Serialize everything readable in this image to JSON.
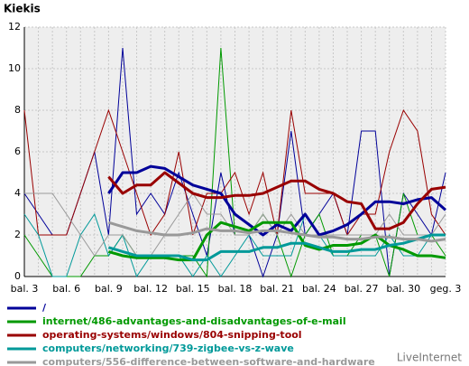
{
  "chart_data": {
    "type": "line",
    "title": "Kiekis",
    "categories": [
      "bal. 3",
      null,
      null,
      "bal. 6",
      null,
      null,
      "bal. 9",
      null,
      null,
      "bal. 12",
      null,
      null,
      "bal. 15",
      null,
      null,
      "bal. 18",
      null,
      null,
      "bal. 21",
      null,
      null,
      "bal. 24",
      null,
      null,
      "bal. 27",
      null,
      null,
      "bal. 30",
      null,
      null,
      "geg. 3"
    ],
    "ylim": [
      0,
      12
    ],
    "yticks": [
      0,
      2,
      4,
      6,
      8,
      10,
      12
    ],
    "grid": true,
    "series": [
      {
        "name": "/",
        "color": "#000099",
        "values": [
          4,
          3,
          2,
          2,
          4,
          6,
          2,
          11,
          3,
          4,
          3,
          5,
          3,
          1,
          5,
          2,
          2,
          0,
          2,
          7,
          2,
          3,
          4,
          2,
          7,
          7,
          0,
          4,
          3,
          2,
          5
        ],
        "trend": [
          null,
          null,
          null,
          null,
          null,
          null,
          4,
          5,
          5,
          5.3,
          5.2,
          4.8,
          4.4,
          4.2,
          4,
          3,
          2.5,
          2,
          2.5,
          2.2,
          3,
          2,
          2.2,
          2.5,
          3,
          3.6,
          3.6,
          3.5,
          3.7,
          3.8,
          3.2
        ]
      },
      {
        "name": "internet/486-advantages-and-disadvantages-of-e-mail",
        "color": "#009900",
        "values": [
          2,
          1,
          0,
          0,
          0,
          1,
          1,
          2,
          1,
          1,
          1,
          1,
          1,
          0,
          11,
          2,
          2,
          3,
          2,
          0,
          2,
          3,
          1,
          1,
          2,
          2,
          0,
          4,
          2,
          2,
          1
        ],
        "trend": [
          null,
          null,
          null,
          null,
          null,
          null,
          1.2,
          1,
          0.9,
          0.9,
          0.9,
          0.8,
          0.8,
          2,
          2.6,
          2.4,
          2.2,
          2.6,
          2.6,
          2.6,
          1.5,
          1.3,
          1.5,
          1.5,
          1.6,
          2,
          1.5,
          1.3,
          1,
          1,
          0.9
        ]
      },
      {
        "name": "operating-systems/windows/804-snipping-tool",
        "color": "#990000",
        "values": [
          8,
          2,
          2,
          2,
          4,
          6,
          8,
          6,
          4,
          2,
          3,
          6,
          2,
          4,
          4,
          5,
          3,
          5,
          2,
          8,
          4,
          4,
          4,
          2,
          3,
          3,
          6,
          8,
          7,
          3,
          2
        ],
        "trend": [
          null,
          null,
          null,
          null,
          null,
          null,
          4.8,
          4,
          4.4,
          4.4,
          5,
          4.5,
          4,
          3.8,
          3.8,
          3.9,
          3.9,
          4,
          4.3,
          4.6,
          4.6,
          4.2,
          4,
          3.6,
          3.5,
          2.3,
          2.3,
          2.6,
          3.5,
          4.2,
          4.3
        ]
      },
      {
        "name": "computers/networking/739-zigbee-vs-z-wave",
        "color": "#009999",
        "values": [
          3,
          2,
          0,
          0,
          2,
          3,
          1,
          2,
          0,
          1,
          1,
          1,
          0,
          1,
          0,
          1,
          2,
          1,
          1,
          1,
          3,
          2,
          1,
          1,
          1,
          1,
          2,
          1,
          1,
          2,
          2
        ],
        "trend": [
          null,
          null,
          null,
          null,
          null,
          null,
          1.4,
          1.2,
          1,
          1,
          1,
          1,
          0.8,
          0.8,
          1.2,
          1.2,
          1.2,
          1.4,
          1.4,
          1.6,
          1.6,
          1.4,
          1.2,
          1.2,
          1.3,
          1.3,
          1.5,
          1.6,
          1.8,
          2,
          2
        ]
      },
      {
        "name": "computers/556-difference-between-software-and-hardware",
        "color": "#999999",
        "values": [
          4,
          4,
          4,
          3,
          2,
          1,
          2,
          2,
          1,
          1,
          2,
          3,
          4,
          3,
          3,
          2,
          2,
          3,
          2,
          3,
          2,
          2,
          2,
          2,
          2,
          2,
          3,
          2,
          2,
          2,
          3
        ],
        "trend": [
          null,
          null,
          null,
          null,
          null,
          null,
          2.6,
          2.4,
          2.2,
          2.1,
          2,
          2,
          2.1,
          2.3,
          2.2,
          2.2,
          2.1,
          2.2,
          2.2,
          2.1,
          2,
          1.9,
          1.9,
          1.8,
          1.8,
          1.9,
          1.9,
          1.8,
          1.8,
          1.7,
          1.8
        ]
      }
    ],
    "footer": "LiveInternet"
  }
}
